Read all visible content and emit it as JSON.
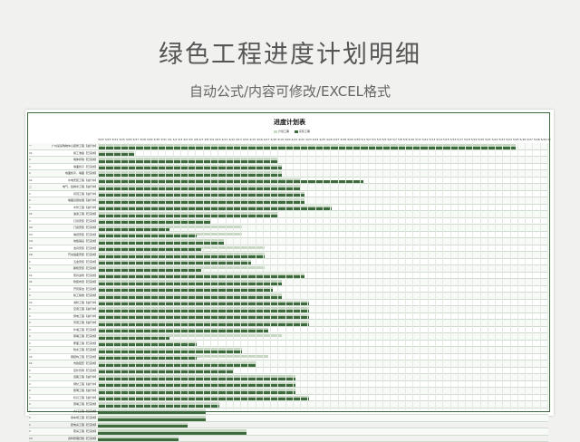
{
  "header": {
    "title": "绿色工程进度计划明细",
    "subtitle": "自动公式/内容可修改/EXCEL格式"
  },
  "sheet": {
    "title": "进度计划表",
    "legend": [
      {
        "label": "计划工期",
        "color": "#c9d8c5"
      },
      {
        "label": "实际工期",
        "color": "#3d6b3d"
      }
    ],
    "dates": "3/22 3/23 3/24 3/25 3/26 3/27 3/28 3/29 3/30 3/31 4/1 4/2 4/3 4/4 4/5 4/6 4/7 4/8 4/9 4/10 4/11 4/12 4/13 4/14 4/15 4/16 4/17 4/18 4/19 4/20 4/21 4/22 4/23 4/24 4/25 4/26 4/27 4/28 4/29 4/30 5/1 5/2 5/3 5/4 5/5 5/6 5/7 5/8 5/9 5/10 5/11 5/12 5/13 5/14 5/15 5/16 5/17 5/18 5/19 5/20 5/21 5/22 5/23 5/24 5/25 5/26 5/27 5/28 5/29 5/30 5/31 6/1 6/2 6/3 6/4 6/5 6/6 6/7 6/8 6/9 6/10 6/11 6/12 6/13 6/14 6/15 6/16 6/17 6/18 6/19 6/20 6/21 6/22 6/23 6/24 6/25 6/26 6/27 6/28 6/29 6/30 7/1 7/2 7/3 7/4 7/5 7/6 7/7 7/8 7/9 7/10 7/11 7/12 7/13 7/14 7/15 7/16 7/17 7/18 7/19 7/20 7/21 7/22 7/23 7/24 7/25 7/26 7/27 7/28 7/29 7/30 7/31 8/1 8/2 8/3 8/4 8/5 8/6 8/7 8/8 8/9 8/10 8/11 8/12",
    "tasks": [
      {
        "num": "一",
        "name": "广州某某购物中心装修工程【进行中】",
        "plan": [
          0,
          0.93
        ],
        "act": [
          0,
          0.93
        ]
      },
      {
        "num": "11",
        "name": "施工准备【已完成】",
        "plan": [
          0,
          0.08
        ],
        "act": [
          0,
          0.08
        ]
      },
      {
        "num": "1",
        "name": "墙体拆除【已完成】",
        "plan": [
          0,
          0.4
        ],
        "act": [
          0,
          0.4
        ]
      },
      {
        "num": "1",
        "name": "墙面找平【已完成】",
        "plan": [
          0,
          0.41
        ],
        "act": [
          0,
          0.41
        ]
      },
      {
        "num": "1",
        "name": "地面找平、墙面【已完成】",
        "plan": [
          0,
          0.41
        ],
        "act": [
          0,
          0.41
        ]
      },
      {
        "num": "11",
        "name": "水电安装工程【进行中】",
        "plan": [
          0,
          0.45
        ],
        "act": [
          0,
          0.59
        ]
      },
      {
        "num": "二",
        "name": "电气、给排水工程【进行中】",
        "plan": [
          0,
          0.45
        ],
        "act": [
          0,
          0.45
        ]
      },
      {
        "num": "1",
        "name": "吊顶工程【进行中】",
        "plan": [
          0,
          0.46
        ],
        "act": [
          0,
          0.46
        ]
      },
      {
        "num": "1",
        "name": "墙面基层处理【进行中】",
        "plan": [
          0,
          0.46
        ],
        "act": [
          0,
          0.46
        ]
      },
      {
        "num": "1",
        "name": "木作工程【进行中】",
        "plan": [
          0,
          0.52
        ],
        "act": [
          0,
          0.52
        ]
      },
      {
        "num": "11",
        "name": "油漆工程【已完成】",
        "plan": [
          0,
          0.4
        ],
        "act": [
          0,
          0.4
        ]
      },
      {
        "num": "1",
        "name": "灯具安装【已完成】",
        "plan": [
          0,
          0.25
        ],
        "act": [
          0,
          0.25
        ]
      },
      {
        "num": "12",
        "name": "门窗安装【已完成】",
        "plan": [
          0,
          0.32
        ],
        "act": [
          0,
          0.16
        ]
      },
      {
        "num": "13",
        "name": "墙纸安装【已完成】",
        "plan": [
          0,
          0.32
        ],
        "act": [
          0,
          0.22
        ]
      },
      {
        "num": "14",
        "name": "地板铺设【已完成】",
        "plan": [
          0,
          0.28
        ],
        "act": [
          0,
          0.28
        ]
      },
      {
        "num": "15",
        "name": "洁具安装【已完成】",
        "plan": [
          0,
          0.37
        ],
        "act": [
          0,
          0.23
        ]
      },
      {
        "num": "16",
        "name": "开关插座安装【已完成】",
        "plan": [
          0,
          0.37
        ],
        "act": [
          0,
          0.37
        ]
      },
      {
        "num": "1",
        "name": "五金安装【已完成】",
        "plan": [
          0,
          0.34
        ],
        "act": [
          0,
          0.34
        ]
      },
      {
        "num": "1",
        "name": "橱柜安装【已完成】",
        "plan": [
          0,
          0.37
        ],
        "act": [
          0,
          0.23
        ]
      },
      {
        "num": "11",
        "name": "家具进场【已完成】",
        "plan": [
          0,
          0.46
        ],
        "act": [
          0,
          0.46
        ]
      },
      {
        "num": "11",
        "name": "软装布置【已完成】",
        "plan": [
          0,
          0.41
        ],
        "act": [
          0,
          0.41
        ]
      },
      {
        "num": "1",
        "name": "开荒保洁【已完成】",
        "plan": [
          0,
          0.39
        ],
        "act": [
          0,
          0.39
        ]
      },
      {
        "num": "1",
        "name": "竣工验收【已完成】",
        "plan": [
          0,
          0.41
        ],
        "act": [
          0,
          0.41
        ]
      },
      {
        "num": "11",
        "name": "消防工程【进行中】",
        "plan": [
          0,
          0.47
        ],
        "act": [
          0,
          0.47
        ]
      },
      {
        "num": "1",
        "name": "空调工程【进行中】",
        "plan": [
          0,
          0.47
        ],
        "act": [
          0,
          0.47
        ]
      },
      {
        "num": "1",
        "name": "弱电工程【进行中】",
        "plan": [
          0,
          0.47
        ],
        "act": [
          0,
          0.47
        ]
      },
      {
        "num": "1",
        "name": "景观工程【进行中】",
        "plan": [
          0,
          0.47
        ],
        "act": [
          0,
          0.47
        ]
      },
      {
        "num": "1",
        "name": "外墙工程【已完成】",
        "plan": [
          0,
          0.38
        ],
        "act": [
          0,
          0.38
        ]
      },
      {
        "num": "1",
        "name": "幕墙工程【已完成】",
        "plan": [
          0,
          0.41
        ],
        "act": [
          0,
          0.16
        ]
      },
      {
        "num": "1",
        "name": "屋面工程【已完成】",
        "plan": [
          0,
          0.22
        ],
        "act": [
          0,
          0.22
        ]
      },
      {
        "num": "1",
        "name": "防水工程【已完成】",
        "plan": [
          0,
          0.32
        ],
        "act": [
          0,
          0.32
        ]
      },
      {
        "num": "11",
        "name": "钢结构工程【已完成】",
        "plan": [
          0,
          0.38
        ],
        "act": [
          0,
          0.22
        ]
      },
      {
        "num": "11",
        "name": "市政配套【已完成】",
        "plan": [
          0,
          0.35
        ],
        "act": [
          0,
          0.35
        ]
      },
      {
        "num": "1",
        "name": "室外管网【已完成】",
        "plan": [
          0,
          0.3
        ],
        "act": [
          0,
          0.3
        ]
      },
      {
        "num": "1",
        "name": "道路工程【进行中】",
        "plan": [
          0,
          0.44
        ],
        "act": [
          0,
          0.44
        ]
      },
      {
        "num": "1",
        "name": "绿化工程【进行中】",
        "plan": [
          0,
          0.44
        ],
        "act": [
          0,
          0.44
        ]
      },
      {
        "num": "1",
        "name": "照明工程【进行中】",
        "plan": [
          0,
          0.44
        ],
        "act": [
          0,
          0.44
        ]
      },
      {
        "num": "1",
        "name": "标识工程【进行中】",
        "plan": [
          0,
          0.47
        ],
        "act": [
          0,
          0.47
        ]
      },
      {
        "num": "1",
        "name": "围墙工程【已完成】",
        "plan": [
          0,
          0.27
        ],
        "act": [
          0,
          0.27
        ]
      },
      {
        "num": "1",
        "name": "大门工程【已完成】",
        "plan": [
          0,
          0.24
        ],
        "act": [
          0,
          0.24
        ]
      },
      {
        "num": "1",
        "name": "停车场工程【已完成】",
        "plan": [
          0,
          0.24
        ],
        "act": [
          0,
          0.24
        ]
      },
      {
        "num": "1",
        "name": "配电房工程【已完成】",
        "plan": [
          0,
          0.2
        ],
        "act": [
          0,
          0.2
        ]
      },
      {
        "num": "1",
        "name": "泵房工程【已完成】",
        "plan": [
          0,
          0.33
        ],
        "act": [
          0,
          0.33
        ]
      },
      {
        "num": "12",
        "name": "资料整理归档【已完成】",
        "plan": [
          0,
          0.18
        ],
        "act": [
          0,
          0.18
        ]
      }
    ]
  }
}
